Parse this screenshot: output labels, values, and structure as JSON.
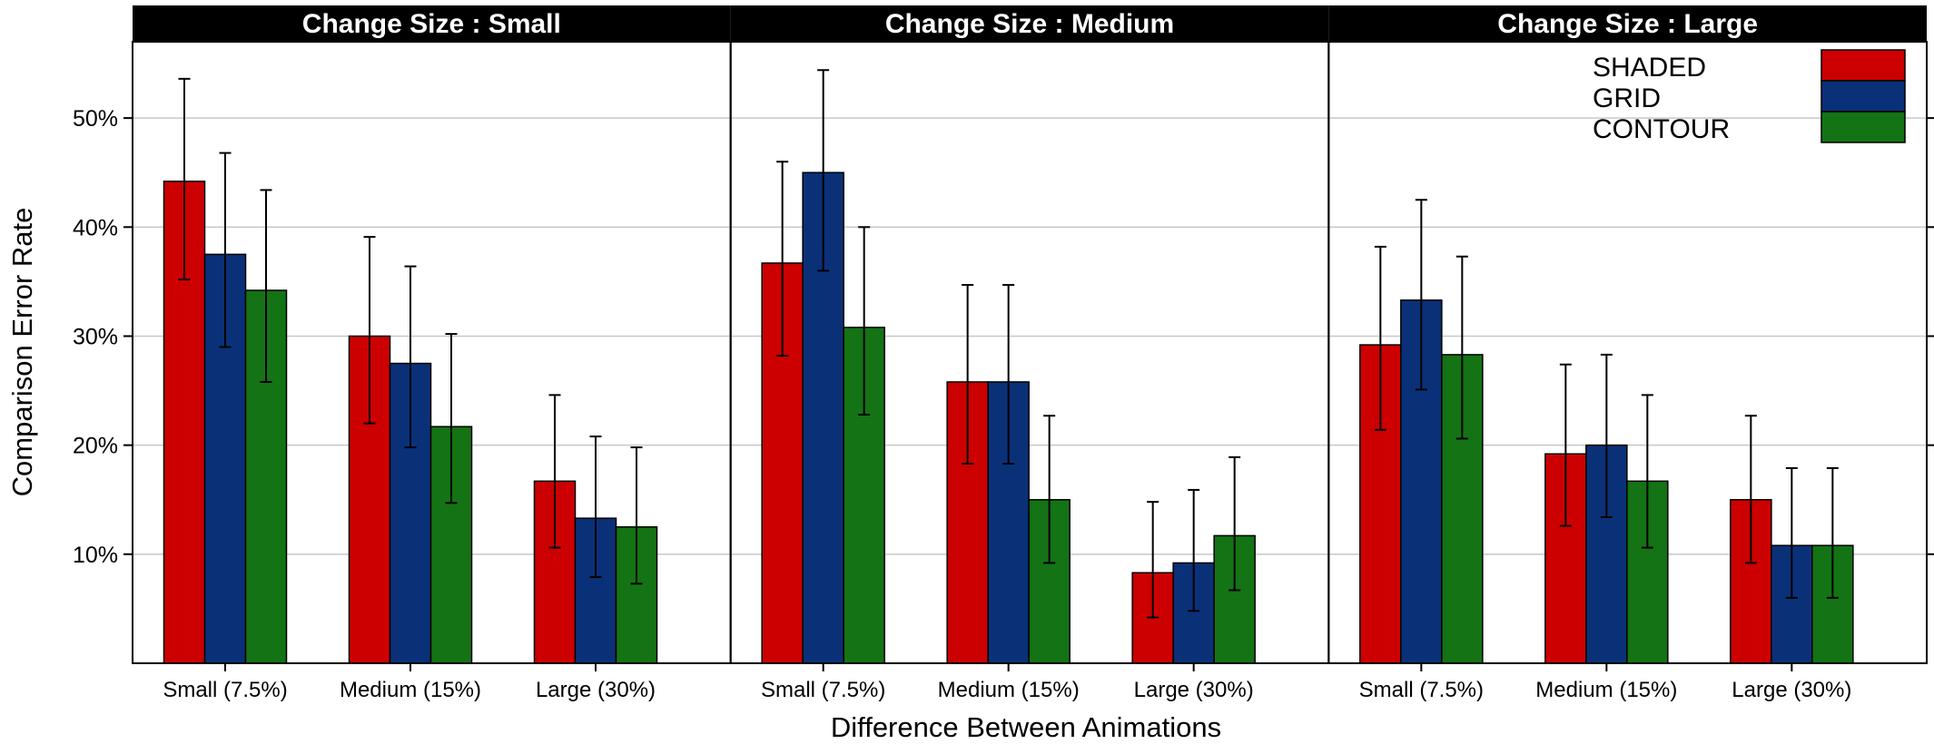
{
  "chart_data": {
    "type": "bar",
    "ylabel": "Comparison Error Rate",
    "xlabel": "Difference Between Animations",
    "ylim": [
      0,
      0.57
    ],
    "y_ticks": [
      0.1,
      0.2,
      0.3,
      0.4,
      0.5
    ],
    "y_tick_labels": [
      "10%",
      "20%",
      "30%",
      "40%",
      "50%"
    ],
    "grid": "horizontal",
    "legend_position": "top-right",
    "categories": [
      "Small (7.5%)",
      "Medium (15%)",
      "Large (30%)"
    ],
    "series_info": [
      {
        "name": "SHADED",
        "color": "#cc0000"
      },
      {
        "name": "GRID",
        "color": "#0a3178"
      },
      {
        "name": "CONTOUR",
        "color": "#147314"
      }
    ],
    "panels": [
      {
        "title": "Change Size : Small",
        "series": [
          {
            "name": "SHADED",
            "values": [
              0.442,
              0.3,
              0.167
            ],
            "err_low": [
              0.352,
              0.22,
              0.106
            ],
            "err_high": [
              0.536,
              0.391,
              0.246
            ]
          },
          {
            "name": "GRID",
            "values": [
              0.375,
              0.275,
              0.133
            ],
            "err_low": [
              0.29,
              0.198,
              0.079
            ],
            "err_high": [
              0.468,
              0.364,
              0.208
            ]
          },
          {
            "name": "CONTOUR",
            "values": [
              0.342,
              0.217,
              0.125
            ],
            "err_low": [
              0.258,
              0.147,
              0.073
            ],
            "err_high": [
              0.434,
              0.302,
              0.198
            ]
          }
        ]
      },
      {
        "title": "Change Size : Medium",
        "series": [
          {
            "name": "SHADED",
            "values": [
              0.367,
              0.258,
              0.083
            ],
            "err_low": [
              0.282,
              0.183,
              0.042
            ],
            "err_high": [
              0.46,
              0.347,
              0.148
            ]
          },
          {
            "name": "GRID",
            "values": [
              0.45,
              0.258,
              0.092
            ],
            "err_low": [
              0.36,
              0.183,
              0.048
            ],
            "err_high": [
              0.544,
              0.347,
              0.159
            ]
          },
          {
            "name": "CONTOUR",
            "values": [
              0.308,
              0.15,
              0.117
            ],
            "err_low": [
              0.228,
              0.092,
              0.067
            ],
            "err_high": [
              0.4,
              0.227,
              0.189
            ]
          }
        ]
      },
      {
        "title": "Change Size : Large",
        "series": [
          {
            "name": "SHADED",
            "values": [
              0.292,
              0.192,
              0.15
            ],
            "err_low": [
              0.214,
              0.126,
              0.092
            ],
            "err_high": [
              0.382,
              0.274,
              0.227
            ]
          },
          {
            "name": "GRID",
            "values": [
              0.333,
              0.2,
              0.108
            ],
            "err_low": [
              0.251,
              0.134,
              0.06
            ],
            "err_high": [
              0.425,
              0.283,
              0.179
            ]
          },
          {
            "name": "CONTOUR",
            "values": [
              0.283,
              0.167,
              0.108
            ],
            "err_low": [
              0.206,
              0.106,
              0.06
            ],
            "err_high": [
              0.373,
              0.246,
              0.179
            ]
          }
        ]
      }
    ]
  }
}
